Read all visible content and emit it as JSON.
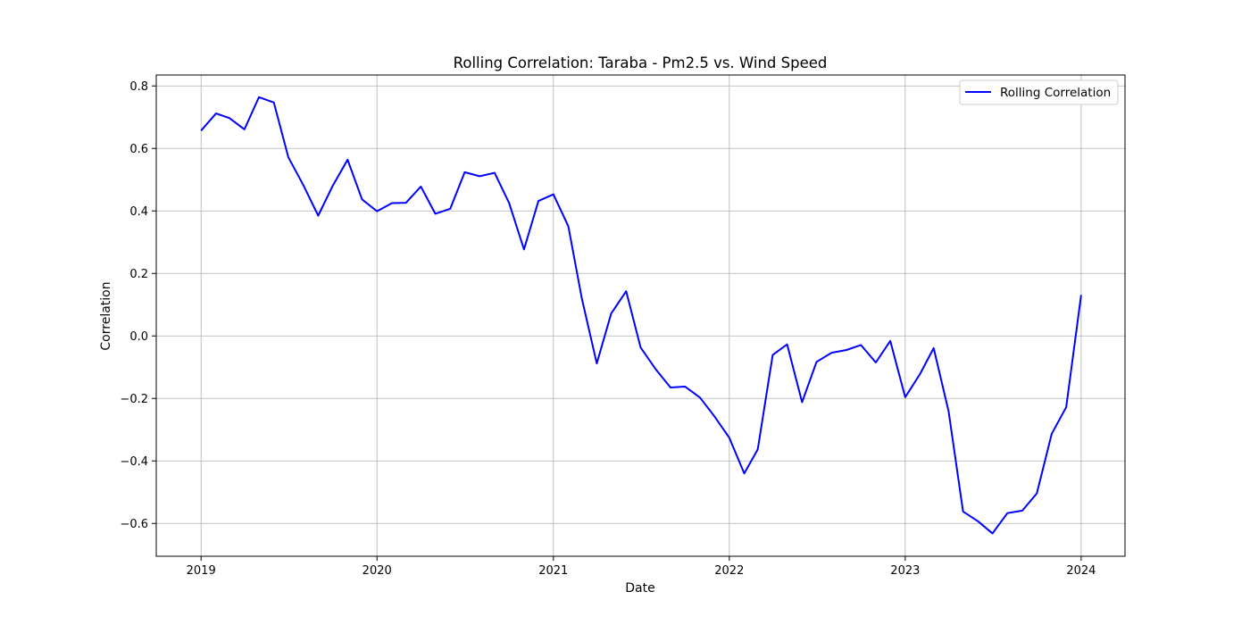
{
  "chart_data": {
    "type": "line",
    "title": "Rolling Correlation: Taraba - Pm2.5 vs. Wind Speed",
    "xlabel": "Date",
    "ylabel": "Correlation",
    "x_ticks": [
      "2019",
      "2020",
      "2021",
      "2022",
      "2023",
      "2024"
    ],
    "y_ticks": [
      "−0.6",
      "−0.4",
      "−0.2",
      "0.0",
      "0.2",
      "0.4",
      "0.6",
      "0.8"
    ],
    "xlim": [
      "2018-09-30",
      "2024-04-01"
    ],
    "ylim": [
      -0.705,
      0.835
    ],
    "grid": true,
    "legend_position": "top-right",
    "line_color": "#0000ff",
    "series": [
      {
        "name": "Rolling Correlation",
        "x": [
          "2019-01-01",
          "2019-02-01",
          "2019-03-01",
          "2019-04-01",
          "2019-05-01",
          "2019-06-01",
          "2019-07-01",
          "2019-08-01",
          "2019-09-01",
          "2019-10-01",
          "2019-11-01",
          "2019-12-01",
          "2020-01-01",
          "2020-02-01",
          "2020-03-01",
          "2020-04-01",
          "2020-05-01",
          "2020-06-01",
          "2020-07-01",
          "2020-08-01",
          "2020-09-01",
          "2020-10-01",
          "2020-11-01",
          "2020-12-01",
          "2021-01-01",
          "2021-02-01",
          "2021-03-01",
          "2021-04-01",
          "2021-05-01",
          "2021-06-01",
          "2021-07-01",
          "2021-08-01",
          "2021-09-01",
          "2021-10-01",
          "2021-11-01",
          "2021-12-01",
          "2022-01-01",
          "2022-02-01",
          "2022-03-01",
          "2022-04-01",
          "2022-05-01",
          "2022-06-01",
          "2022-07-01",
          "2022-08-01",
          "2022-09-01",
          "2022-10-01",
          "2022-11-01",
          "2022-12-01",
          "2023-01-01",
          "2023-02-01",
          "2023-03-01",
          "2023-04-01",
          "2023-05-01",
          "2023-06-01",
          "2023-07-01",
          "2023-08-01",
          "2023-09-01",
          "2023-10-01",
          "2023-11-01",
          "2023-12-01",
          "2024-01-01"
        ],
        "y": [
          0.657,
          0.712,
          0.697,
          0.661,
          0.764,
          0.747,
          0.572,
          0.483,
          0.385,
          0.48,
          0.564,
          0.437,
          0.399,
          0.425,
          0.426,
          0.478,
          0.391,
          0.407,
          0.524,
          0.511,
          0.522,
          0.426,
          0.277,
          0.432,
          0.453,
          0.351,
          0.12,
          -0.088,
          0.072,
          0.143,
          -0.037,
          -0.106,
          -0.165,
          -0.162,
          -0.197,
          -0.257,
          -0.326,
          -0.44,
          -0.363,
          -0.061,
          -0.027,
          -0.212,
          -0.083,
          -0.054,
          -0.045,
          -0.029,
          -0.085,
          -0.016,
          -0.196,
          -0.121,
          -0.039,
          -0.241,
          -0.562,
          -0.593,
          -0.632,
          -0.567,
          -0.559,
          -0.504,
          -0.313,
          -0.228,
          0.131
        ]
      }
    ]
  }
}
